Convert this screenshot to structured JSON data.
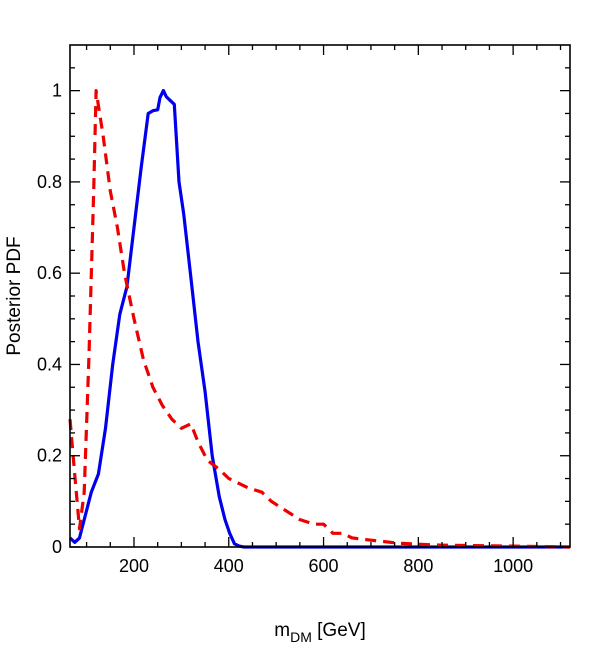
{
  "chart_data": {
    "type": "line",
    "xlabel_main": "m",
    "xlabel_sub": "DM",
    "xlabel_unit": " [GeV]",
    "ylabel": "Posterior PDF",
    "xlim": [
      65,
      1120
    ],
    "ylim": [
      0,
      1.1
    ],
    "x_ticks": [
      200,
      400,
      600,
      800,
      1000
    ],
    "y_ticks": [
      0,
      0.2,
      0.4,
      0.6,
      0.8,
      1
    ],
    "x_tick_labels": [
      "200",
      "400",
      "600",
      "800",
      "1000"
    ],
    "y_tick_labels": [
      "0",
      "0.2",
      "0.4",
      "0.6",
      "0.8",
      "1"
    ],
    "grid": false,
    "legend": "none",
    "series": [
      {
        "color": "#0000ee",
        "style": "solid",
        "x": [
          65,
          75,
          85,
          95,
          110,
          125,
          140,
          155,
          170,
          185,
          200,
          215,
          230,
          240,
          250,
          255,
          262,
          268,
          275,
          285,
          295,
          305,
          320,
          335,
          350,
          365,
          380,
          392,
          402,
          412,
          422,
          432,
          450,
          500,
          600,
          800,
          1120
        ],
        "y": [
          0.02,
          0.01,
          0.02,
          0.06,
          0.12,
          0.16,
          0.26,
          0.4,
          0.51,
          0.57,
          0.7,
          0.83,
          0.95,
          0.956,
          0.958,
          0.985,
          1.0,
          0.987,
          0.98,
          0.97,
          0.8,
          0.73,
          0.59,
          0.45,
          0.34,
          0.2,
          0.11,
          0.06,
          0.03,
          0.007,
          0.002,
          0.0,
          0.0,
          0.0,
          0.0,
          0.0,
          0.0
        ]
      },
      {
        "color": "#ee0000",
        "style": "dashed",
        "x": [
          65,
          75,
          85,
          95,
          105,
          115,
          120,
          135,
          150,
          165,
          180,
          200,
          220,
          240,
          260,
          280,
          300,
          320,
          335,
          355,
          380,
          400,
          420,
          440,
          470,
          490,
          520,
          550,
          580,
          600,
          620,
          640,
          660,
          700,
          760,
          850,
          1000,
          1120
        ],
        "y": [
          0.28,
          0.16,
          0.04,
          0.12,
          0.42,
          0.78,
          1.0,
          0.9,
          0.78,
          0.7,
          0.6,
          0.5,
          0.41,
          0.35,
          0.31,
          0.28,
          0.26,
          0.27,
          0.23,
          0.19,
          0.17,
          0.15,
          0.14,
          0.13,
          0.12,
          0.1,
          0.08,
          0.06,
          0.05,
          0.05,
          0.03,
          0.03,
          0.02,
          0.015,
          0.008,
          0.004,
          0.002,
          0.0
        ]
      }
    ]
  }
}
